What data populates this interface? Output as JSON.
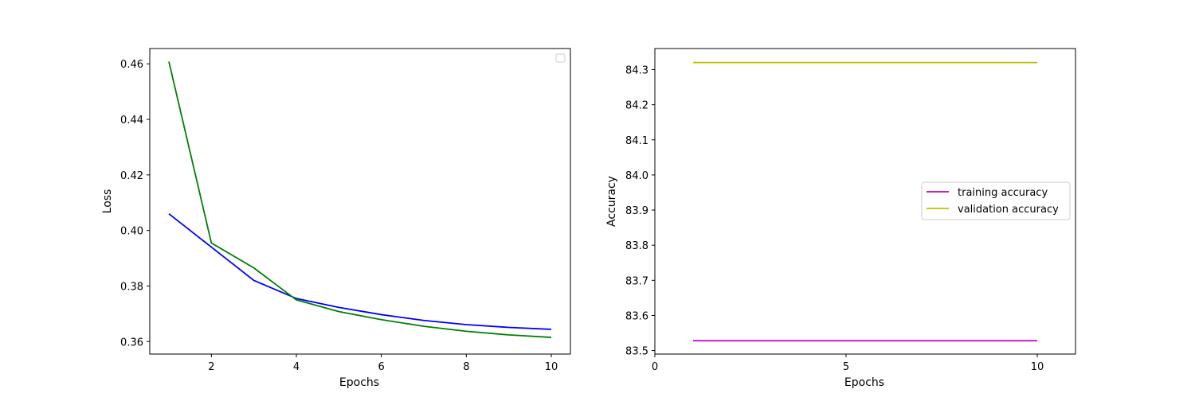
{
  "chart_data": [
    {
      "type": "line",
      "xlabel": "Epochs",
      "ylabel": "Loss",
      "xlim": [
        0.55,
        10.45
      ],
      "ylim": [
        0.3555,
        0.4655
      ],
      "xticks": [
        2,
        4,
        6,
        8,
        10
      ],
      "yticks": [
        0.36,
        0.38,
        0.4,
        0.42,
        0.44,
        0.46
      ],
      "ytick_labels": [
        "0.36",
        "0.38",
        "0.40",
        "0.42",
        "0.44",
        "0.46"
      ],
      "grid": false,
      "legend": {
        "placement": "top-right",
        "entries": []
      },
      "x": [
        1,
        2,
        3,
        4,
        5,
        6,
        7,
        8,
        9,
        10
      ],
      "series": [
        {
          "color": "#0000ff",
          "values": [
            0.406,
            0.394,
            0.382,
            0.3755,
            0.3723,
            0.3697,
            0.3676,
            0.3661,
            0.3651,
            0.3644
          ]
        },
        {
          "color": "#008000",
          "values": [
            0.4608,
            0.3955,
            0.3865,
            0.375,
            0.3708,
            0.3679,
            0.3655,
            0.3637,
            0.3624,
            0.3615
          ]
        }
      ]
    },
    {
      "type": "line",
      "xlabel": "Epochs",
      "ylabel": "Accuracy",
      "xlim": [
        0,
        11
      ],
      "ylim": [
        83.49,
        84.36
      ],
      "xticks": [
        0,
        5,
        10
      ],
      "yticks": [
        83.5,
        83.6,
        83.7,
        83.8,
        83.9,
        84.0,
        84.1,
        84.2,
        84.3
      ],
      "ytick_labels": [
        "83.5",
        "83.6",
        "83.7",
        "83.8",
        "83.9",
        "84.0",
        "84.1",
        "84.2",
        "84.3"
      ],
      "grid": false,
      "legend": {
        "placement": "center-right"
      },
      "x": [
        1,
        2,
        3,
        4,
        5,
        6,
        7,
        8,
        9,
        10
      ],
      "series": [
        {
          "name": "training accuracy",
          "color": "#bf00bf",
          "values": [
            83.528,
            83.528,
            83.528,
            83.528,
            83.528,
            83.528,
            83.528,
            83.528,
            83.528,
            83.528
          ]
        },
        {
          "name": "validation accuracy",
          "color": "#bfbf00",
          "values": [
            84.32,
            84.32,
            84.32,
            84.32,
            84.32,
            84.32,
            84.32,
            84.32,
            84.32,
            84.32
          ]
        }
      ]
    }
  ]
}
